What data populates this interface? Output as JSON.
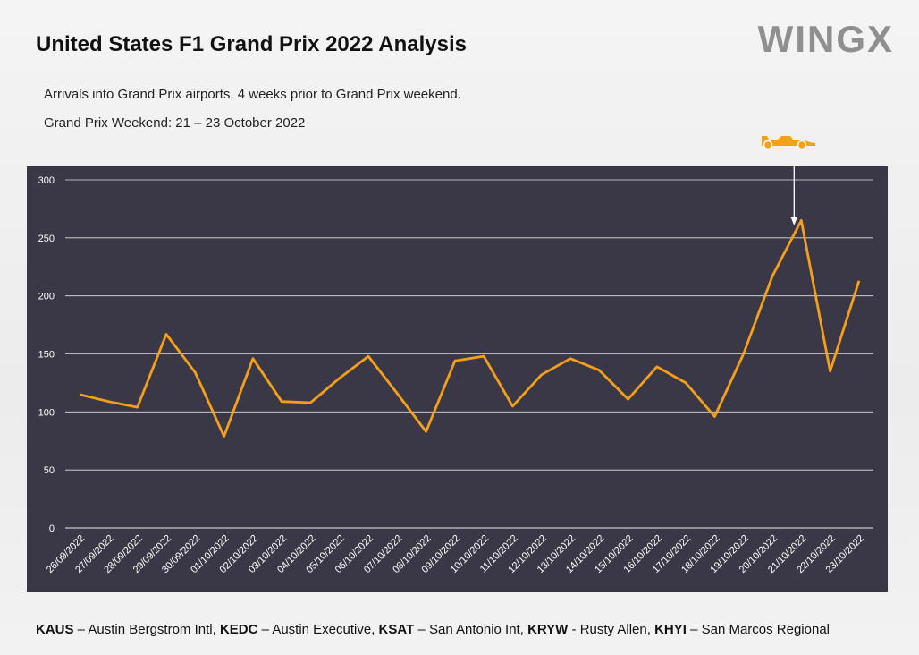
{
  "header": {
    "title": "United States F1 Grand Prix 2022 Analysis",
    "subtitle": "Arrivals into Grand Prix airports, 4 weeks prior to Grand Prix weekend.",
    "weekend": "Grand Prix Weekend: 21 – 23 October 2022",
    "logo": "WINGX"
  },
  "legend_footer": [
    {
      "code": "KAUS",
      "sep": " – ",
      "name": "Austin Bergstrom Intl, "
    },
    {
      "code": "KEDC",
      "sep": " – ",
      "name": "Austin Executive, "
    },
    {
      "code": "KSAT",
      "sep": " – ",
      "name": "San Antonio Int, "
    },
    {
      "code": "KRYW",
      "sep": " - ",
      "name": "Rusty Allen, "
    },
    {
      "code": "KHYI",
      "sep": " – ",
      "name": "San Marcos Regional"
    }
  ],
  "colors": {
    "line": "#f5a01a",
    "plot_bg": "#3a3746",
    "grid": "#ffffff",
    "axis_text": "#ffffff",
    "marker": "#f5a01a"
  },
  "icons": {
    "car": "race-car-icon",
    "arrow": "arrow-down-icon"
  },
  "chart_data": {
    "type": "line",
    "title": "",
    "xlabel": "",
    "ylabel": "",
    "ylim": [
      0,
      300
    ],
    "yticks": [
      0,
      50,
      100,
      150,
      200,
      250,
      300
    ],
    "grid": true,
    "categories": [
      "26/09/2022",
      "27/09/2022",
      "28/09/2022",
      "29/09/2022",
      "30/09/2022",
      "01/10/2022",
      "02/10/2022",
      "03/10/2022",
      "04/10/2022",
      "05/10/2022",
      "06/10/2022",
      "07/10/2022",
      "08/10/2022",
      "09/10/2022",
      "10/10/2022",
      "11/10/2022",
      "12/10/2022",
      "13/10/2022",
      "14/10/2022",
      "15/10/2022",
      "16/10/2022",
      "17/10/2022",
      "18/10/2022",
      "19/10/2022",
      "20/10/2022",
      "21/10/2022",
      "22/10/2022",
      "23/10/2022"
    ],
    "series": [
      {
        "values": [
          115,
          109,
          104,
          167,
          134,
          79,
          146,
          109,
          108,
          129,
          148,
          116,
          83,
          144,
          148,
          105,
          132,
          146,
          136,
          111,
          139,
          125,
          96,
          150,
          217,
          265,
          135,
          213
        ]
      }
    ],
    "annotation": {
      "category": "21/10/2022",
      "marker": "arrow-down-icon"
    }
  }
}
